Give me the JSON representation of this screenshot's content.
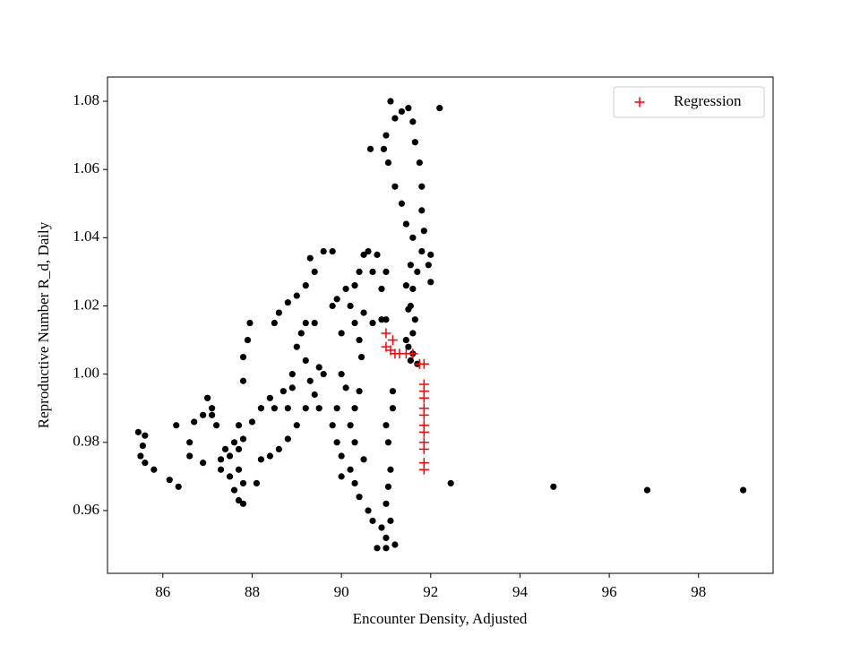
{
  "chart_data": {
    "type": "scatter",
    "xlabel": "Encounter Density, Adjusted",
    "ylabel": "Reproductive Number R_d, Daily",
    "xlim": [
      84.76,
      99.67
    ],
    "ylim": [
      0.9416,
      1.0871
    ],
    "xticks": [
      86,
      88,
      90,
      92,
      94,
      96,
      98
    ],
    "yticks": [
      0.96,
      0.98,
      {
        "value": 1,
        "label": "1.00"
      },
      1.02,
      1.04,
      1.06,
      1.08
    ],
    "legend": "upper right",
    "series": [
      {
        "color": "#000000",
        "marker": "dot",
        "x": [
          91.55,
          91.5,
          91.6,
          91.65,
          91.55,
          91.6,
          91.7,
          91.8,
          91.85,
          91.8,
          91.8,
          91.75,
          91.65,
          91.6,
          91.5,
          91.35,
          91.1,
          91.2,
          91.0,
          90.95,
          90.65,
          91.05,
          91.2,
          91.35,
          91.45,
          91.6,
          91.55,
          91.45,
          91.5,
          91.45,
          91.6,
          92.2,
          91.95,
          92.0,
          92.0,
          91.7,
          90.5,
          90.6,
          90.8,
          90.7,
          90.4,
          90.3,
          90.2,
          90.3,
          90.5,
          90.7,
          90.9,
          91.0,
          91.0,
          90.9,
          90.1,
          89.9,
          89.8,
          90.0,
          90.4,
          90.45,
          89.3,
          89.6,
          89.8,
          89.4,
          89.2,
          89.0,
          88.8,
          88.6,
          88.5,
          89.2,
          89.4,
          89.1,
          89.0,
          89.2,
          89.5,
          89.6,
          89.3,
          89.4,
          89.5,
          89.2,
          89.0,
          88.8,
          88.6,
          88.4,
          88.2,
          88.9,
          88.9,
          88.8,
          88.7,
          88.5,
          88.4,
          88.2,
          88.0,
          87.8,
          87.7,
          90.0,
          90.1,
          89.9,
          89.8,
          89.9,
          90.0,
          90.2,
          90.3,
          90.4,
          90.6,
          90.7,
          90.9,
          91.0,
          91.0,
          90.8,
          91.2,
          91.1,
          91.0,
          91.05,
          91.1,
          90.3,
          90.2,
          90.3,
          90.4,
          90.0,
          90.5,
          91.15,
          91.15,
          91.0,
          91.05,
          85.45,
          85.5,
          85.6,
          85.55,
          85.6,
          85.8,
          86.15,
          86.35,
          86.6,
          86.6,
          86.7,
          86.9,
          87.0,
          87.1,
          87.2,
          86.9,
          87.3,
          87.5,
          87.6,
          87.7,
          87.8,
          87.5,
          87.6,
          87.7,
          87.4,
          87.3,
          87.8,
          88.1,
          87.7,
          87.8,
          87.8,
          87.9,
          87.95,
          86.3,
          87.0,
          87.1,
          92.45,
          94.75,
          96.85,
          99.0
        ],
        "values": [
          1.004,
          1.008,
          1.012,
          1.016,
          1.02,
          1.025,
          1.03,
          1.036,
          1.042,
          1.048,
          1.055,
          1.062,
          1.068,
          1.074,
          1.078,
          1.077,
          1.08,
          1.075,
          1.07,
          1.066,
          1.066,
          1.062,
          1.055,
          1.05,
          1.044,
          1.04,
          1.032,
          1.026,
          1.019,
          1.01,
          1.006,
          1.078,
          1.032,
          1.027,
          1.035,
          1.003,
          1.035,
          1.036,
          1.035,
          1.03,
          1.03,
          1.026,
          1.02,
          1.015,
          1.018,
          1.015,
          1.016,
          1.016,
          1.03,
          1.025,
          1.025,
          1.022,
          1.02,
          1.012,
          1.01,
          1.005,
          1.034,
          1.036,
          1.036,
          1.03,
          1.026,
          1.023,
          1.021,
          1.018,
          1.015,
          1.015,
          1.015,
          1.012,
          1.008,
          1.004,
          1.002,
          1.0,
          0.998,
          0.994,
          0.99,
          0.99,
          0.985,
          0.981,
          0.978,
          0.976,
          0.975,
          1.0,
          0.996,
          0.99,
          0.995,
          0.99,
          0.993,
          0.99,
          0.986,
          0.981,
          0.978,
          1.0,
          0.996,
          0.99,
          0.985,
          0.98,
          0.976,
          0.972,
          0.968,
          0.964,
          0.96,
          0.957,
          0.955,
          0.952,
          0.949,
          0.949,
          0.95,
          0.957,
          0.962,
          0.967,
          0.972,
          0.98,
          0.985,
          0.99,
          0.995,
          0.97,
          0.975,
          0.99,
          0.995,
          0.985,
          0.98,
          0.983,
          0.976,
          0.974,
          0.979,
          0.982,
          0.972,
          0.969,
          0.967,
          0.976,
          0.98,
          0.986,
          0.988,
          0.993,
          0.988,
          0.985,
          0.974,
          0.972,
          0.97,
          0.966,
          0.963,
          0.962,
          0.976,
          0.98,
          0.985,
          0.978,
          0.975,
          0.968,
          0.968,
          0.972,
          0.998,
          1.005,
          1.01,
          1.015,
          0.985,
          0.993,
          0.99,
          0.968,
          0.967,
          0.966,
          0.966
        ]
      },
      {
        "name": "Regression",
        "color": "#ff0000",
        "marker": "plus",
        "x": [
          91.0,
          91.0,
          91.15,
          91.1,
          91.2,
          91.3,
          91.45,
          91.6,
          91.75,
          91.85,
          91.85,
          91.85,
          91.85,
          91.85,
          91.85,
          91.85,
          91.85,
          91.85,
          91.85,
          91.85,
          91.85
        ],
        "values": [
          1.012,
          1.008,
          1.01,
          1.007,
          1.006,
          1.006,
          1.006,
          1.006,
          1.003,
          1.003,
          0.997,
          0.995,
          0.993,
          0.99,
          0.988,
          0.985,
          0.983,
          0.98,
          0.978,
          0.974,
          0.972
        ]
      }
    ]
  }
}
